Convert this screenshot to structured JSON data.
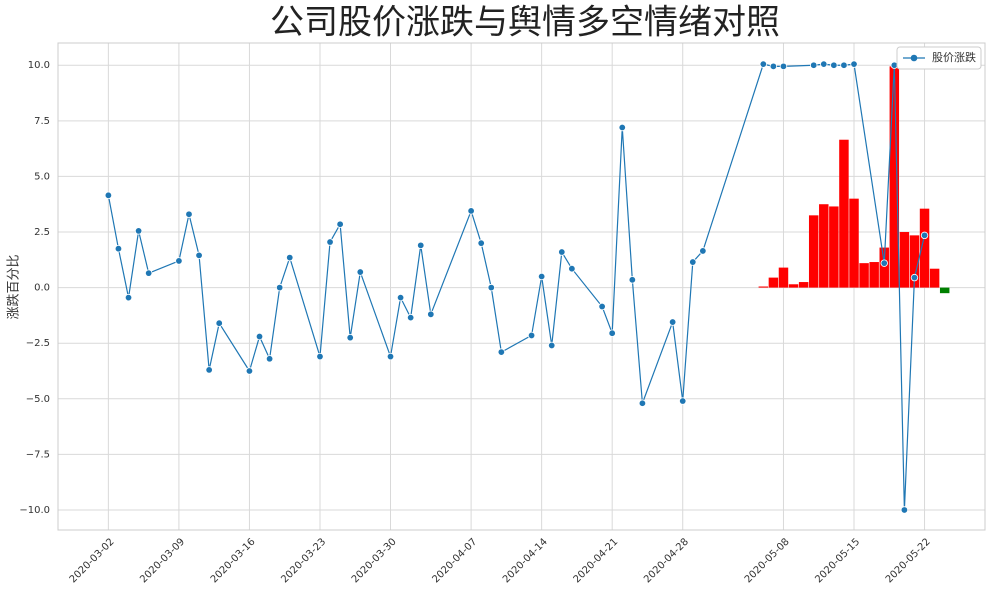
{
  "chart_data": {
    "type": "line",
    "title": "公司股价涨跌与舆情多空情绪对照",
    "y_label": "涨跌百分比",
    "grid": true,
    "legend_position": "upper-right",
    "xlim": [
      "2020-02-26",
      "2020-05-28"
    ],
    "xticks": [
      "2020-03-02",
      "2020-03-09",
      "2020-03-16",
      "2020-03-23",
      "2020-03-30",
      "2020-04-07",
      "2020-04-14",
      "2020-04-21",
      "2020-04-28",
      "2020-05-08",
      "2020-05-15",
      "2020-05-22"
    ],
    "ylim": [
      -10.9,
      11.0
    ],
    "yticks": [
      {
        "value": -10,
        "label": "−10.0"
      },
      {
        "value": -7.5,
        "label": "−7.5"
      },
      {
        "value": -5,
        "label": "−5.0"
      },
      {
        "value": -2.5,
        "label": "−2.5"
      },
      {
        "value": 0,
        "label": "0.0"
      },
      {
        "value": 2.5,
        "label": "2.5"
      },
      {
        "value": 5,
        "label": "5.0"
      },
      {
        "value": 7.5,
        "label": "7.5"
      },
      {
        "value": 10,
        "label": "10.0"
      }
    ],
    "series": [
      {
        "type": "bar",
        "positive_color": "#ff0000",
        "negative_color": "#008000",
        "x": [
          "2020-05-06",
          "2020-05-07",
          "2020-05-08",
          "2020-05-09",
          "2020-05-10",
          "2020-05-11",
          "2020-05-12",
          "2020-05-13",
          "2020-05-14",
          "2020-05-15",
          "2020-05-16",
          "2020-05-17",
          "2020-05-18",
          "2020-05-19",
          "2020-05-20",
          "2020-05-21",
          "2020-05-22",
          "2020-05-23",
          "2020-05-24"
        ],
        "values": [
          0.05,
          0.45,
          0.9,
          0.15,
          0.25,
          3.25,
          3.75,
          3.65,
          6.65,
          4.0,
          1.1,
          1.15,
          1.8,
          9.95,
          2.5,
          2.35,
          3.55,
          0.85,
          -0.25
        ]
      },
      {
        "type": "line",
        "name": "股价涨跌",
        "color": "#1f77b4",
        "x": [
          "2020-03-02",
          "2020-03-03",
          "2020-03-04",
          "2020-03-05",
          "2020-03-06",
          "2020-03-09",
          "2020-03-10",
          "2020-03-11",
          "2020-03-12",
          "2020-03-13",
          "2020-03-16",
          "2020-03-17",
          "2020-03-18",
          "2020-03-19",
          "2020-03-20",
          "2020-03-23",
          "2020-03-24",
          "2020-03-25",
          "2020-03-26",
          "2020-03-27",
          "2020-03-30",
          "2020-03-31",
          "2020-04-01",
          "2020-04-02",
          "2020-04-03",
          "2020-04-07",
          "2020-04-08",
          "2020-04-09",
          "2020-04-10",
          "2020-04-13",
          "2020-04-14",
          "2020-04-15",
          "2020-04-16",
          "2020-04-17",
          "2020-04-20",
          "2020-04-21",
          "2020-04-22",
          "2020-04-23",
          "2020-04-24",
          "2020-04-27",
          "2020-04-28",
          "2020-04-29",
          "2020-04-30",
          "2020-05-06",
          "2020-05-07",
          "2020-05-08",
          "2020-05-11",
          "2020-05-12",
          "2020-05-13",
          "2020-05-14",
          "2020-05-15",
          "2020-05-18",
          "2020-05-19",
          "2020-05-20",
          "2020-05-21",
          "2020-05-22"
        ],
        "values": [
          4.15,
          1.75,
          -0.45,
          2.55,
          0.65,
          1.2,
          3.3,
          1.45,
          -3.7,
          -1.6,
          -3.75,
          -2.2,
          -3.2,
          0.0,
          1.35,
          -3.1,
          2.05,
          2.85,
          -2.25,
          0.7,
          -3.1,
          -0.45,
          -1.35,
          1.9,
          -1.2,
          3.45,
          2.0,
          0.0,
          -2.9,
          -2.15,
          0.5,
          -2.6,
          1.6,
          0.85,
          -0.85,
          -2.05,
          7.2,
          0.35,
          -5.2,
          -1.55,
          -5.1,
          1.15,
          1.65,
          10.05,
          9.95,
          9.95,
          10.0,
          10.05,
          10.0,
          10.0,
          10.05,
          1.1,
          10.0,
          -10.0,
          0.45,
          2.35
        ]
      }
    ]
  }
}
